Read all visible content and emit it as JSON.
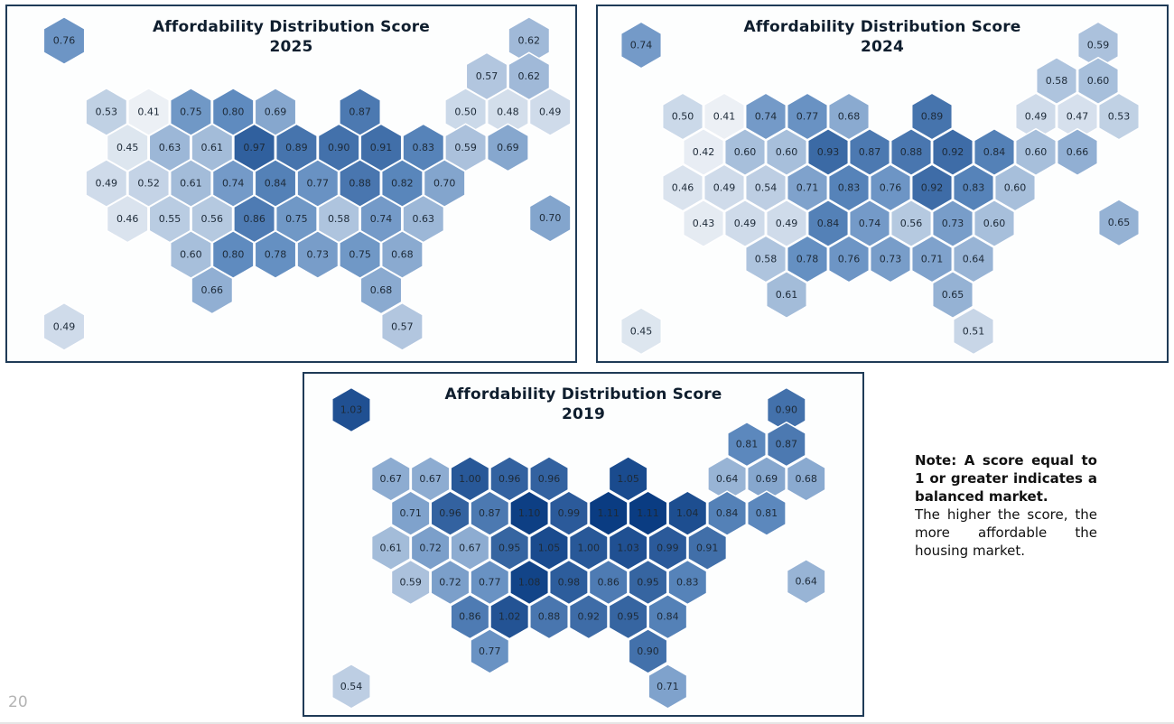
{
  "chart_data": [
    {
      "type": "heatmap",
      "title": "Affordability Distribution Score",
      "subtitle": "2025",
      "values": [
        "0.76",
        "0.62",
        "0.57",
        "0.62",
        "0.53",
        "0.41",
        "0.75",
        "0.80",
        "0.69",
        "0.87",
        "0.50",
        "0.48",
        "0.49",
        "0.45",
        "0.63",
        "0.61",
        "0.97",
        "0.89",
        "0.90",
        "0.91",
        "0.83",
        "0.59",
        "0.69",
        "0.49",
        "0.52",
        "0.61",
        "0.74",
        "0.84",
        "0.77",
        "0.88",
        "0.82",
        "0.70",
        "0.70",
        "0.46",
        "0.55",
        "0.56",
        "0.86",
        "0.75",
        "0.58",
        "0.74",
        "0.63",
        "0.60",
        "0.80",
        "0.78",
        "0.73",
        "0.75",
        "0.68",
        "0.66",
        "0.68",
        "0.49",
        "0.57"
      ]
    },
    {
      "type": "heatmap",
      "title": "Affordability Distribution Score",
      "subtitle": "2024",
      "values": [
        "0.74",
        "0.59",
        "0.58",
        "0.60",
        "0.50",
        "0.41",
        "0.74",
        "0.77",
        "0.68",
        "0.89",
        "0.49",
        "0.47",
        "0.53",
        "0.42",
        "0.60",
        "0.60",
        "0.93",
        "0.87",
        "0.88",
        "0.92",
        "0.84",
        "0.60",
        "0.66",
        "0.46",
        "0.49",
        "0.54",
        "0.71",
        "0.83",
        "0.76",
        "0.92",
        "0.83",
        "0.60",
        "0.65",
        "0.43",
        "0.49",
        "0.49",
        "0.84",
        "0.74",
        "0.56",
        "0.73",
        "0.60",
        "0.58",
        "0.78",
        "0.76",
        "0.73",
        "0.71",
        "0.64",
        "0.61",
        "0.65",
        "0.45",
        "0.51"
      ]
    },
    {
      "type": "heatmap",
      "title": "Affordability Distribution Score",
      "subtitle": "2019",
      "values": [
        "1.03",
        "0.90",
        "0.81",
        "0.87",
        "0.67",
        "0.67",
        "1.00",
        "0.96",
        "0.96",
        "1.05",
        "0.64",
        "0.69",
        "0.68",
        "0.71",
        "0.96",
        "0.87",
        "1.10",
        "0.99",
        "1.11",
        "1.11",
        "1.04",
        "0.84",
        "0.81",
        "0.61",
        "0.72",
        "0.67",
        "0.95",
        "1.05",
        "1.00",
        "1.03",
        "0.99",
        "0.91",
        "0.64",
        "0.59",
        "0.72",
        "0.77",
        "1.08",
        "0.98",
        "0.86",
        "0.95",
        "0.83",
        "0.86",
        "1.02",
        "0.88",
        "0.92",
        "0.95",
        "0.84",
        "0.77",
        "0.90",
        "0.54",
        "0.71"
      ]
    }
  ],
  "note": {
    "bold": "Note: A score equal to 1 or greater indicates a balanced market.",
    "text": "The higher the score, the more affordable the housing market."
  },
  "page_number": "20"
}
